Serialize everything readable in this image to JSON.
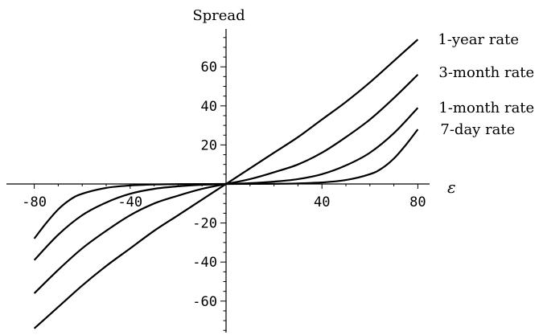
{
  "chart_data": {
    "type": "line",
    "title": "",
    "ylabel": "Spread",
    "xlabel": "ε",
    "xlim": [
      -86,
      86
    ],
    "ylim": [
      -78,
      78
    ],
    "x_ticks": [
      -80,
      -40,
      40,
      80
    ],
    "y_ticks": [
      -60,
      -40,
      -20,
      20,
      40,
      60
    ],
    "grid": false,
    "series": [
      {
        "name": "1-year rate",
        "points": [
          [
            -80,
            -74
          ],
          [
            -70,
            -63
          ],
          [
            -60,
            -52
          ],
          [
            -50,
            -42
          ],
          [
            -40,
            -33
          ],
          [
            -30,
            -24
          ],
          [
            -20,
            -16
          ],
          [
            -10,
            -8
          ],
          [
            0,
            0
          ],
          [
            10,
            8
          ],
          [
            20,
            16
          ],
          [
            30,
            24
          ],
          [
            40,
            33
          ],
          [
            50,
            42
          ],
          [
            60,
            52
          ],
          [
            70,
            63
          ],
          [
            80,
            74
          ]
        ]
      },
      {
        "name": "3-month rate",
        "points": [
          [
            -80,
            -56
          ],
          [
            -70,
            -44
          ],
          [
            -60,
            -33
          ],
          [
            -50,
            -24
          ],
          [
            -40,
            -16
          ],
          [
            -30,
            -10
          ],
          [
            -20,
            -6
          ],
          [
            -10,
            -2.5
          ],
          [
            0,
            0
          ],
          [
            10,
            2.5
          ],
          [
            20,
            6
          ],
          [
            30,
            10
          ],
          [
            40,
            16
          ],
          [
            50,
            24
          ],
          [
            60,
            33
          ],
          [
            70,
            44
          ],
          [
            80,
            56
          ]
        ]
      },
      {
        "name": "1-month rate",
        "points": [
          [
            -80,
            -39
          ],
          [
            -70,
            -26
          ],
          [
            -60,
            -16
          ],
          [
            -50,
            -9.5
          ],
          [
            -40,
            -5
          ],
          [
            -30,
            -2.5
          ],
          [
            -20,
            -1.2
          ],
          [
            -10,
            -0.4
          ],
          [
            0,
            0
          ],
          [
            10,
            0.4
          ],
          [
            20,
            1.2
          ],
          [
            30,
            2.5
          ],
          [
            40,
            5
          ],
          [
            50,
            9.5
          ],
          [
            60,
            16
          ],
          [
            70,
            26
          ],
          [
            80,
            39
          ]
        ]
      },
      {
        "name": "7-day rate",
        "points": [
          [
            -80,
            -28
          ],
          [
            -75,
            -20
          ],
          [
            -70,
            -13
          ],
          [
            -65,
            -8
          ],
          [
            -60,
            -5
          ],
          [
            -50,
            -2
          ],
          [
            -40,
            -0.8
          ],
          [
            -30,
            -0.3
          ],
          [
            -20,
            -0.1
          ],
          [
            0,
            0
          ],
          [
            20,
            0.1
          ],
          [
            30,
            0.3
          ],
          [
            40,
            0.8
          ],
          [
            50,
            2
          ],
          [
            60,
            5
          ],
          [
            65,
            8
          ],
          [
            70,
            13
          ],
          [
            75,
            20
          ],
          [
            80,
            28
          ]
        ]
      }
    ],
    "series_label_positions": "right end of each curve"
  }
}
